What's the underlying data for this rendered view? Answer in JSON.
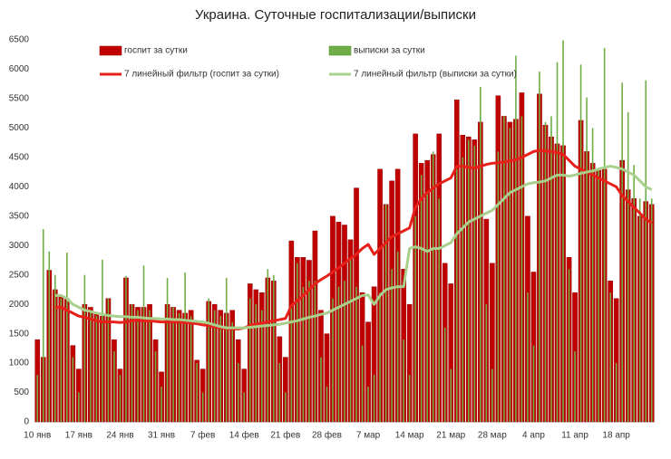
{
  "chart_data": {
    "type": "bar",
    "title": "Украина. Суточные госпитализации/выписки",
    "categories": [
      "10 янв",
      null,
      null,
      null,
      null,
      null,
      null,
      "17 янв",
      null,
      null,
      null,
      null,
      null,
      null,
      "24 янв",
      null,
      null,
      null,
      null,
      null,
      null,
      "31 янв",
      null,
      null,
      null,
      null,
      null,
      null,
      "7 фев",
      null,
      null,
      null,
      null,
      null,
      null,
      "14 фев",
      null,
      null,
      null,
      null,
      null,
      null,
      "21 фев",
      null,
      null,
      null,
      null,
      null,
      null,
      "28 фев",
      null,
      null,
      null,
      null,
      null,
      null,
      "7 мар",
      null,
      null,
      null,
      null,
      null,
      null,
      "14 мар",
      null,
      null,
      null,
      null,
      null,
      null,
      "21 мар",
      null,
      null,
      null,
      null,
      null,
      null,
      "28 мар",
      null,
      null,
      null,
      null,
      null,
      null,
      "4 апр",
      null,
      null,
      null,
      null,
      null,
      null,
      "11 апр",
      null,
      null,
      null,
      null,
      null,
      null,
      "18 апр",
      null,
      null,
      null,
      null,
      null,
      null
    ],
    "series": [
      {
        "name": "госпит за сутки",
        "type": "bar",
        "color": "#c00000",
        "values": [
          1400,
          1100,
          2580,
          2250,
          2150,
          2100,
          1300,
          900,
          2000,
          1950,
          1850,
          1800,
          2100,
          1400,
          900,
          2450,
          2000,
          1950,
          1950,
          2000,
          1400,
          850,
          2000,
          1950,
          1900,
          1850,
          1900,
          1050,
          900,
          2050,
          2000,
          1900,
          1850,
          1900,
          1400,
          900,
          2350,
          2250,
          2200,
          2450,
          2400,
          1450,
          1100,
          3080,
          2800,
          2800,
          2750,
          3250,
          1900,
          1500,
          3500,
          3400,
          3350,
          3100,
          3980,
          2200,
          1700,
          2300,
          4300,
          3700,
          4100,
          4300,
          2600,
          2000,
          4900,
          4400,
          4450,
          4550,
          4900,
          2700,
          2350,
          5480,
          4880,
          4850,
          4800,
          5100,
          3450,
          2700,
          5550,
          5200,
          5100,
          5150,
          5600,
          3500,
          2550,
          5580,
          5050,
          4850,
          4730,
          4700,
          2800,
          2200,
          5130,
          4600,
          4400,
          4280,
          4300,
          2400,
          2100,
          4450,
          3950,
          3800,
          3500,
          3750,
          3700
        ]
      },
      {
        "name": "выписки за сутки",
        "type": "bar",
        "color": "#70ad47",
        "values": [
          800,
          3280,
          2900,
          2500,
          2100,
          2880,
          1100,
          500,
          2500,
          1900,
          1800,
          2760,
          2100,
          1200,
          800,
          2480,
          2000,
          1900,
          2660,
          1900,
          1200,
          600,
          2450,
          1950,
          1850,
          2540,
          1800,
          1000,
          500,
          2100,
          1900,
          1800,
          2450,
          1700,
          1000,
          500,
          2100,
          2000,
          1900,
          2600,
          2500,
          1000,
          500,
          2000,
          2700,
          2300,
          2400,
          2400,
          1100,
          600,
          2100,
          2300,
          2400,
          2800,
          2300,
          1300,
          600,
          800,
          2200,
          3700,
          2600,
          2900,
          1400,
          800,
          3500,
          4200,
          3900,
          4600,
          3800,
          1600,
          900,
          4300,
          4500,
          4800,
          4700,
          5700,
          2000,
          900,
          4600,
          5200,
          5000,
          6230,
          5200,
          2200,
          1300,
          5960,
          5100,
          5200,
          6120,
          6490,
          2600,
          1200,
          6080,
          5520,
          5000,
          4300,
          6360,
          2200,
          1000,
          5770,
          5270,
          4370,
          3800,
          5810,
          3800
        ]
      },
      {
        "name": "7 линейный фильтр (госпит за сутки)",
        "type": "line",
        "color": "#e8201a",
        "values": [
          null,
          null,
          null,
          1950,
          1950,
          1900,
          1850,
          1800,
          1780,
          1750,
          1720,
          1700,
          1700,
          1700,
          1690,
          1700,
          1720,
          1730,
          1720,
          1720,
          1710,
          1700,
          1700,
          1700,
          1700,
          1690,
          1680,
          1670,
          1650,
          1640,
          1620,
          1600,
          1590,
          1580,
          1580,
          1600,
          1640,
          1660,
          1680,
          1700,
          1720,
          1740,
          1760,
          1980,
          2060,
          2150,
          2250,
          2350,
          2420,
          2480,
          2550,
          2620,
          2700,
          2780,
          2850,
          2950,
          3020,
          2850,
          2950,
          3050,
          3150,
          3200,
          3250,
          3300,
          3650,
          3800,
          3900,
          3980,
          4050,
          4100,
          4150,
          4350,
          4350,
          4330,
          4320,
          4350,
          4380,
          4400,
          4410,
          4420,
          4440,
          4460,
          4500,
          4550,
          4600,
          4620,
          4610,
          4600,
          4580,
          4550,
          4450,
          4350,
          4300,
          4250,
          4200,
          4150,
          4100,
          4050,
          4000,
          3850,
          3750,
          3650,
          3550,
          3450,
          3380
        ]
      },
      {
        "name": "7 линейный фильтр (выписки за сутки)",
        "type": "line",
        "color": "#a9d18e",
        "values": [
          null,
          null,
          null,
          2150,
          2150,
          2100,
          2000,
          1950,
          1900,
          1880,
          1850,
          1830,
          1810,
          1800,
          1790,
          1790,
          1780,
          1780,
          1770,
          1760,
          1760,
          1750,
          1750,
          1740,
          1740,
          1730,
          1720,
          1710,
          1700,
          1680,
          1650,
          1620,
          1600,
          1600,
          1600,
          1600,
          1610,
          1620,
          1630,
          1640,
          1650,
          1660,
          1680,
          1700,
          1720,
          1750,
          1780,
          1800,
          1830,
          1850,
          1900,
          1950,
          2000,
          2050,
          2100,
          2150,
          2160,
          2000,
          2150,
          2250,
          2280,
          2300,
          2300,
          2950,
          2980,
          2950,
          2900,
          2950,
          2950,
          3000,
          3050,
          3200,
          3300,
          3400,
          3450,
          3500,
          3550,
          3600,
          3700,
          3800,
          3900,
          3950,
          4000,
          4050,
          4070,
          4080,
          4100,
          4150,
          4200,
          4200,
          4180,
          4200,
          4230,
          4250,
          4270,
          4300,
          4330,
          4350,
          4330,
          4300,
          4250,
          4200,
          4100,
          4000,
          3950
        ]
      }
    ],
    "ylim": [
      0,
      6500
    ],
    "yticks": [
      0,
      500,
      1000,
      1500,
      2000,
      2500,
      3000,
      3500,
      4000,
      4500,
      5000,
      5500,
      6000,
      6500
    ],
    "grid": false
  }
}
